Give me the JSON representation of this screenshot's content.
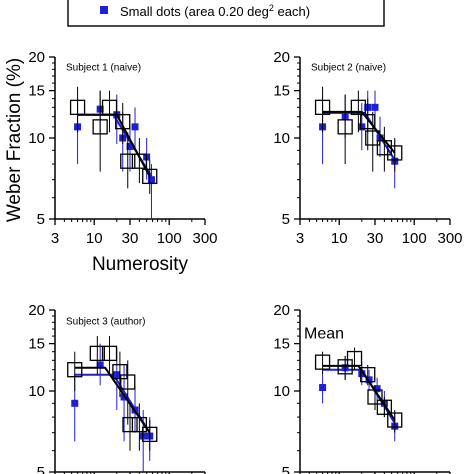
{
  "legend": {
    "text": "Small dots (area 0.20 deg",
    "superscript": "2",
    "suffix": " each)",
    "marker_color": "#1f1fd6"
  },
  "axes": {
    "ylabel": "Weber Fraction (%)",
    "xlabel": "Numerosity",
    "y_ticks": [
      "20",
      "15",
      "10",
      "5"
    ],
    "x_ticks": [
      "3",
      "10",
      "30",
      "100",
      "300"
    ]
  },
  "colors": {
    "blue": "#1f1fd6",
    "black": "#000000"
  },
  "chart_data": [
    {
      "type": "scatter",
      "title": "Subject 1 (naive)",
      "xscale": "log",
      "yscale": "log",
      "xlim": [
        3,
        300
      ],
      "ylim": [
        5,
        20
      ],
      "series": [
        {
          "marker": "open-square",
          "color": "#000000",
          "points": [
            {
              "x": 6,
              "y": 13.0,
              "lo": 10.5,
              "hi": 15.5
            },
            {
              "x": 12,
              "y": 11.0,
              "lo": 7.5,
              "hi": 15.0
            },
            {
              "x": 16,
              "y": 13.0,
              "lo": 10.5,
              "hi": 15.0
            },
            {
              "x": 24,
              "y": 11.5,
              "lo": 9.5,
              "hi": 13.5
            },
            {
              "x": 28,
              "y": 8.2,
              "lo": 6.5,
              "hi": 10.5
            },
            {
              "x": 40,
              "y": 8.2,
              "lo": 6.8,
              "hi": 10.0
            },
            {
              "x": 55,
              "y": 7.2,
              "lo": 6.2,
              "hi": 8.3
            }
          ],
          "fit": [
            [
              6,
              12.2
            ],
            [
              20,
              12.2
            ],
            [
              55,
              7.2
            ]
          ]
        },
        {
          "marker": "filled-square",
          "color": "#1f1fd6",
          "points": [
            {
              "x": 6,
              "y": 11.0,
              "lo": 8.0,
              "hi": 14.0
            },
            {
              "x": 12,
              "y": 12.8,
              "lo": 10.5,
              "hi": 15.0
            },
            {
              "x": 20,
              "y": 12.2,
              "lo": 9.5,
              "hi": 14.5
            },
            {
              "x": 24,
              "y": 10.0,
              "lo": 7.5,
              "hi": 12.5
            },
            {
              "x": 30,
              "y": 9.3,
              "lo": 7.5,
              "hi": 11.0
            },
            {
              "x": 35,
              "y": 11.0,
              "lo": 9.0,
              "hi": 13.0
            },
            {
              "x": 50,
              "y": 8.5,
              "lo": 7.0,
              "hi": 10.0
            },
            {
              "x": 58,
              "y": 7.0,
              "lo": 5.0,
              "hi": 8.0
            }
          ],
          "fit": [
            [
              6,
              12.2
            ],
            [
              18,
              12.2
            ],
            [
              58,
              7.2
            ]
          ]
        }
      ]
    },
    {
      "type": "scatter",
      "title": "Subject 2 (naive)",
      "xscale": "log",
      "yscale": "log",
      "xlim": [
        3,
        300
      ],
      "ylim": [
        5,
        20
      ],
      "series": [
        {
          "marker": "open-square",
          "color": "#000000",
          "points": [
            {
              "x": 6,
              "y": 13.0,
              "lo": 10.5,
              "hi": 15.5
            },
            {
              "x": 12,
              "y": 11.0,
              "lo": 8.0,
              "hi": 14.5
            },
            {
              "x": 18,
              "y": 13.0,
              "lo": 10.5,
              "hi": 15.0
            },
            {
              "x": 24,
              "y": 11.5,
              "lo": 9.0,
              "hi": 14.0
            },
            {
              "x": 28,
              "y": 10.0,
              "lo": 7.5,
              "hi": 12.5
            },
            {
              "x": 40,
              "y": 9.2,
              "lo": 7.5,
              "hi": 11.0
            },
            {
              "x": 55,
              "y": 8.8,
              "lo": 7.5,
              "hi": 10.0
            }
          ],
          "fit": [
            [
              6,
              12.5
            ],
            [
              20,
              12.5
            ],
            [
              55,
              8.8
            ]
          ]
        },
        {
          "marker": "filled-square",
          "color": "#1f1fd6",
          "points": [
            {
              "x": 6,
              "y": 11.0,
              "lo": 8.0,
              "hi": 14.0
            },
            {
              "x": 12,
              "y": 12.0,
              "lo": 10.0,
              "hi": 14.5
            },
            {
              "x": 20,
              "y": 11.0,
              "lo": 9.0,
              "hi": 13.5
            },
            {
              "x": 24,
              "y": 13.0,
              "lo": 10.5,
              "hi": 15.0
            },
            {
              "x": 30,
              "y": 13.0,
              "lo": 11.0,
              "hi": 15.0
            },
            {
              "x": 35,
              "y": 10.0,
              "lo": 8.5,
              "hi": 12.0
            },
            {
              "x": 55,
              "y": 8.2,
              "lo": 6.5,
              "hi": 9.8
            }
          ],
          "fit": [
            [
              6,
              12.4
            ],
            [
              22,
              12.4
            ],
            [
              55,
              8.3
            ]
          ]
        }
      ]
    },
    {
      "type": "scatter",
      "title": "Subject 3 (author)",
      "xscale": "log",
      "yscale": "log",
      "xlim": [
        3,
        300
      ],
      "ylim": [
        5,
        20
      ],
      "series": [
        {
          "marker": "open-square",
          "color": "#000000",
          "points": [
            {
              "x": 5.5,
              "y": 12.0,
              "lo": 10.0,
              "hi": 14.0
            },
            {
              "x": 11,
              "y": 13.8,
              "lo": 11.5,
              "hi": 16.0
            },
            {
              "x": 16,
              "y": 13.8,
              "lo": 11.5,
              "hi": 16.0
            },
            {
              "x": 22,
              "y": 11.8,
              "lo": 9.5,
              "hi": 14.0
            },
            {
              "x": 28,
              "y": 10.8,
              "lo": 7.5,
              "hi": 13.0
            },
            {
              "x": 30,
              "y": 7.5,
              "lo": 6.0,
              "hi": 9.0
            },
            {
              "x": 40,
              "y": 7.5,
              "lo": 6.0,
              "hi": 9.0
            },
            {
              "x": 55,
              "y": 6.9,
              "lo": 6.0,
              "hi": 7.8
            }
          ],
          "fit": [
            [
              5.5,
              12.2
            ],
            [
              14,
              12.2
            ],
            [
              55,
              7.0
            ]
          ]
        },
        {
          "marker": "filled-square",
          "color": "#1f1fd6",
          "points": [
            {
              "x": 5.5,
              "y": 9.0,
              "lo": 6.5,
              "hi": 11.5
            },
            {
              "x": 12,
              "y": 12.5,
              "lo": 10.5,
              "hi": 15.0
            },
            {
              "x": 20,
              "y": 11.5,
              "lo": 8.5,
              "hi": 14.5
            },
            {
              "x": 25,
              "y": 9.5,
              "lo": 6.5,
              "hi": 12.5
            },
            {
              "x": 35,
              "y": 8.5,
              "lo": 7.0,
              "hi": 10.5
            },
            {
              "x": 45,
              "y": 6.8,
              "lo": 5.0,
              "hi": 8.5
            },
            {
              "x": 55,
              "y": 6.8,
              "lo": 5.5,
              "hi": 8.0
            }
          ],
          "fit": [
            [
              5.5,
              11.5
            ],
            [
              18,
              11.5
            ],
            [
              55,
              7.0
            ]
          ]
        }
      ]
    },
    {
      "type": "scatter",
      "title": "Mean",
      "xscale": "log",
      "yscale": "log",
      "xlim": [
        3,
        300
      ],
      "ylim": [
        5,
        20
      ],
      "series": [
        {
          "marker": "open-square",
          "color": "#000000",
          "points": [
            {
              "x": 6,
              "y": 12.8,
              "lo": 11.5,
              "hi": 14.0
            },
            {
              "x": 12,
              "y": 12.3,
              "lo": 11.0,
              "hi": 13.5
            },
            {
              "x": 16,
              "y": 13.2,
              "lo": 12.0,
              "hi": 14.5
            },
            {
              "x": 24,
              "y": 11.5,
              "lo": 10.5,
              "hi": 12.5
            },
            {
              "x": 30,
              "y": 9.5,
              "lo": 8.5,
              "hi": 10.5
            },
            {
              "x": 40,
              "y": 8.7,
              "lo": 8.0,
              "hi": 9.5
            },
            {
              "x": 55,
              "y": 7.8,
              "lo": 7.0,
              "hi": 8.5
            }
          ],
          "fit": [
            [
              6,
              12.4
            ],
            [
              18,
              12.4
            ],
            [
              55,
              7.8
            ]
          ]
        },
        {
          "marker": "filled-square",
          "color": "#1f1fd6",
          "points": [
            {
              "x": 6,
              "y": 10.3,
              "lo": 9.0,
              "hi": 11.5
            },
            {
              "x": 12,
              "y": 12.2,
              "lo": 11.0,
              "hi": 13.5
            },
            {
              "x": 20,
              "y": 11.6,
              "lo": 10.5,
              "hi": 12.8
            },
            {
              "x": 25,
              "y": 11.0,
              "lo": 10.0,
              "hi": 12.0
            },
            {
              "x": 32,
              "y": 10.2,
              "lo": 9.2,
              "hi": 11.2
            },
            {
              "x": 40,
              "y": 9.0,
              "lo": 8.0,
              "hi": 10.0
            },
            {
              "x": 55,
              "y": 7.4,
              "lo": 6.5,
              "hi": 8.3
            }
          ],
          "fit": [
            [
              6,
              12.0
            ],
            [
              20,
              12.0
            ],
            [
              55,
              7.6
            ]
          ]
        }
      ]
    }
  ]
}
